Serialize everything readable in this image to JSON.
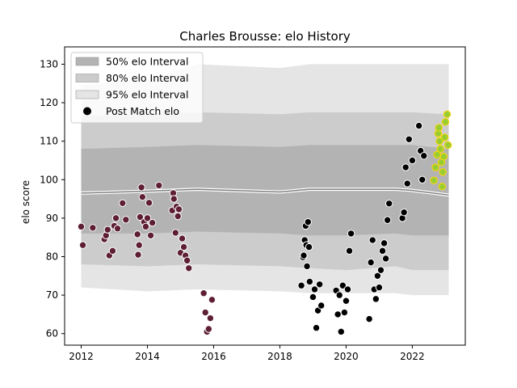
{
  "chart_data": {
    "type": "scatter",
    "title": "Charles Brousse: elo History",
    "xlabel": "",
    "ylabel": "elo score",
    "xlim": [
      2011.5,
      2023.6
    ],
    "ylim": [
      57,
      134.5
    ],
    "xticks": [
      2012,
      2014,
      2016,
      2018,
      2020,
      2022
    ],
    "yticks": [
      60,
      70,
      80,
      90,
      100,
      110,
      120,
      130
    ],
    "grid": false,
    "legend_placement": "top-left",
    "legend": [
      {
        "label": "50% elo Interval",
        "kind": "band50"
      },
      {
        "label": "80% elo Interval",
        "kind": "band80"
      },
      {
        "label": "95% elo Interval",
        "kind": "band95"
      },
      {
        "label": "Post Match elo",
        "kind": "point"
      }
    ],
    "colors": {
      "band50": "#b3b3b3",
      "band80": "#cccccc",
      "band95": "#e5e5e5",
      "mean_line": "#808080",
      "outline_line": "#ffffff",
      "points_early": "#5e1f33",
      "points_mid": "#000000",
      "points_recent": "#9acd32",
      "points_recent_edge": "#ffd700"
    },
    "intervals": {
      "x": [
        2012.0,
        2014.0,
        2015.5,
        2018.0,
        2018.9,
        2020.0,
        2021.5,
        2022.0,
        2023.1
      ],
      "mean": [
        96.5,
        97.0,
        97.5,
        96.8,
        97.5,
        97.5,
        97.5,
        97.2,
        96.0
      ],
      "band50": [
        [
          86.0,
          108.0
        ],
        [
          86.0,
          108.5
        ],
        [
          86.5,
          109.0
        ],
        [
          86.0,
          108.5
        ],
        [
          85.5,
          109.0
        ],
        [
          85.5,
          109.0
        ],
        [
          86.0,
          109.0
        ],
        [
          85.5,
          109.0
        ],
        [
          85.5,
          108.0
        ]
      ],
      "band80": [
        [
          78.0,
          116.5
        ],
        [
          77.5,
          117.0
        ],
        [
          78.0,
          117.5
        ],
        [
          77.5,
          117.0
        ],
        [
          77.0,
          117.5
        ],
        [
          76.5,
          117.5
        ],
        [
          77.5,
          117.5
        ],
        [
          76.5,
          117.5
        ],
        [
          76.5,
          117.0
        ]
      ],
      "band95": [
        [
          72.0,
          124.5
        ],
        [
          71.0,
          126.0
        ],
        [
          71.5,
          130.0
        ],
        [
          71.0,
          129.0
        ],
        [
          70.5,
          130.0
        ],
        [
          70.5,
          130.0
        ],
        [
          70.5,
          130.0
        ],
        [
          70.0,
          130.0
        ],
        [
          70.0,
          130.0
        ]
      ]
    },
    "series": [
      {
        "group": "points_early",
        "x": [
          2012.0,
          2012.05,
          2012.35,
          2012.7,
          2012.75,
          2012.8,
          2012.85,
          2012.95,
          2013.0,
          2013.05,
          2013.1,
          2013.25,
          2013.35,
          2013.7,
          2013.72,
          2013.75,
          2013.78,
          2013.82,
          2013.85,
          2013.9,
          2013.95,
          2014.0,
          2014.05,
          2014.1,
          2014.15,
          2014.35,
          2014.75,
          2014.78,
          2014.8,
          2014.85,
          2014.88,
          2014.92,
          2014.95,
          2015.0,
          2015.05,
          2015.1,
          2015.15,
          2015.2,
          2015.25,
          2015.7,
          2015.75,
          2015.8,
          2015.85,
          2015.9,
          2015.95
        ],
        "y": [
          87.8,
          83.0,
          87.5,
          84.5,
          85.5,
          87.0,
          80.3,
          81.5,
          88.0,
          90.0,
          87.3,
          93.9,
          89.6,
          85.8,
          80.5,
          83.0,
          90.3,
          98.0,
          95.5,
          89.0,
          87.8,
          90.0,
          94.0,
          85.5,
          88.8,
          98.5,
          92.0,
          96.5,
          95.0,
          86.2,
          93.0,
          90.5,
          92.3,
          81.0,
          84.7,
          82.5,
          80.3,
          79.0,
          77.0,
          70.5,
          65.5,
          60.5,
          61.2,
          64.0,
          68.8
        ]
      },
      {
        "group": "points_mid",
        "x": [
          2018.65,
          2018.7,
          2018.72,
          2018.75,
          2018.78,
          2018.8,
          2018.82,
          2018.85,
          2018.88,
          2018.9,
          2019.0,
          2019.05,
          2019.1,
          2019.15,
          2019.2,
          2019.25,
          2019.7,
          2019.75,
          2019.8,
          2019.85,
          2019.9,
          2019.95,
          2020.0,
          2020.05,
          2020.1,
          2020.15,
          2020.7,
          2020.75,
          2020.8,
          2020.85,
          2020.9,
          2020.95,
          2021.0,
          2021.05,
          2021.1,
          2021.15,
          2021.2,
          2021.25,
          2021.3,
          2021.7,
          2021.75,
          2021.8,
          2021.85,
          2021.9,
          2022.0,
          2022.2,
          2022.25,
          2022.3,
          2022.35
        ],
        "y": [
          72.5,
          79.8,
          80.3,
          84.3,
          88.0,
          83.0,
          77.5,
          89.0,
          82.5,
          73.5,
          69.5,
          71.5,
          61.5,
          66.0,
          72.8,
          67.3,
          71.2,
          65.0,
          70.0,
          60.5,
          72.5,
          65.5,
          68.5,
          71.5,
          81.5,
          86.0,
          63.8,
          78.5,
          84.3,
          71.5,
          69.0,
          75.0,
          72.0,
          76.5,
          81.5,
          83.5,
          79.5,
          89.5,
          93.8,
          90.0,
          91.5,
          103.2,
          99.0,
          110.5,
          105.0,
          114.0,
          107.5,
          100.0,
          106.2
        ]
      },
      {
        "group": "points_recent",
        "x": [
          2022.65,
          2022.7,
          2022.75,
          2022.78,
          2022.8,
          2022.82,
          2022.85,
          2022.88,
          2022.9,
          2022.92,
          2022.95,
          2022.98,
          2023.0,
          2023.05,
          2023.08
        ],
        "y": [
          99.8,
          103.2,
          106.5,
          112.0,
          113.5,
          110.0,
          108.0,
          104.5,
          98.2,
          102.0,
          106.0,
          111.0,
          115.0,
          117.0,
          109.0
        ]
      }
    ]
  }
}
